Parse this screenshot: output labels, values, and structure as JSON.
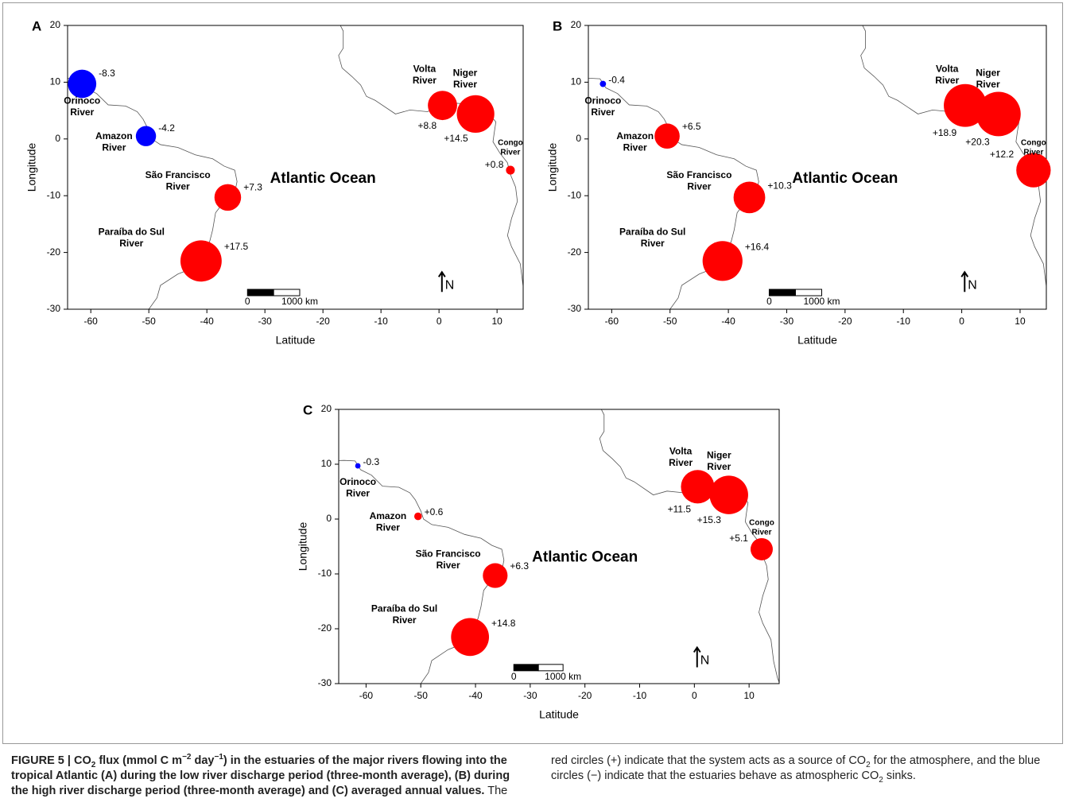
{
  "chart_data": [
    {
      "type": "bubble-map",
      "label": "A",
      "x_label": "Latitude",
      "y_label": "Longitude",
      "xlim": [
        -64,
        14.5
      ],
      "ylim": [
        -30,
        20
      ],
      "xticks": [
        -60,
        -50,
        -40,
        -30,
        -20,
        -10,
        0,
        10
      ],
      "yticks": [
        -30,
        -20,
        -10,
        0,
        10,
        20
      ],
      "annotation": "Atlantic Ocean",
      "scale_bar": [
        "0",
        "1000 km"
      ],
      "north": "N",
      "points": [
        {
          "name": "Orinoco River",
          "x": -61.5,
          "y": 9.7,
          "value": -8.3,
          "value_label": "-8.3",
          "color": "#0000ff"
        },
        {
          "name": "Amazon River",
          "x": -50.5,
          "y": 0.5,
          "value": -4.2,
          "value_label": "-4.2",
          "color": "#0000ff"
        },
        {
          "name": "São Francisco River",
          "x": -36.4,
          "y": -10.3,
          "value": 7.3,
          "value_label": "+7.3",
          "color": "#ff0000"
        },
        {
          "name": "Paraíba do Sul River",
          "x": -41,
          "y": -21.5,
          "value": 17.5,
          "value_label": "+17.5",
          "color": "#ff0000"
        },
        {
          "name": "Volta River",
          "x": 0.6,
          "y": 5.9,
          "value": 8.8,
          "value_label": "+8.8",
          "color": "#ff0000"
        },
        {
          "name": "Niger River",
          "x": 6.3,
          "y": 4.4,
          "value": 14.5,
          "value_label": "+14.5",
          "color": "#ff0000"
        },
        {
          "name": "Congo River",
          "x": 12.3,
          "y": -5.5,
          "value": 0.8,
          "value_label": "+0.8",
          "color": "#ff0000"
        }
      ]
    },
    {
      "type": "bubble-map",
      "label": "B",
      "x_label": "Latitude",
      "y_label": "Longitude",
      "xlim": [
        -64,
        14.5
      ],
      "ylim": [
        -30,
        20
      ],
      "xticks": [
        -60,
        -50,
        -40,
        -30,
        -20,
        -10,
        0,
        10
      ],
      "yticks": [
        -30,
        -20,
        -10,
        0,
        10,
        20
      ],
      "annotation": "Atlantic Ocean",
      "scale_bar": [
        "0",
        "1000 km"
      ],
      "north": "N",
      "points": [
        {
          "name": "Orinoco River",
          "x": -61.5,
          "y": 9.7,
          "value": -0.4,
          "value_label": "-0.4",
          "color": "#0000ff"
        },
        {
          "name": "Amazon River",
          "x": -50.5,
          "y": 0.5,
          "value": 6.5,
          "value_label": "+6.5",
          "color": "#ff0000"
        },
        {
          "name": "São Francisco River",
          "x": -36.4,
          "y": -10.3,
          "value": 10.3,
          "value_label": "+10.3",
          "color": "#ff0000"
        },
        {
          "name": "Paraíba do Sul River",
          "x": -41,
          "y": -21.5,
          "value": 16.4,
          "value_label": "+16.4",
          "color": "#ff0000"
        },
        {
          "name": "Volta River",
          "x": 0.6,
          "y": 5.9,
          "value": 18.9,
          "value_label": "+18.9",
          "color": "#ff0000"
        },
        {
          "name": "Niger River",
          "x": 6.3,
          "y": 4.4,
          "value": 20.3,
          "value_label": "+20.3",
          "color": "#ff0000"
        },
        {
          "name": "Congo River",
          "x": 12.3,
          "y": -5.5,
          "value": 12.2,
          "value_label": "+12.2",
          "color": "#ff0000"
        }
      ]
    },
    {
      "type": "bubble-map",
      "label": "C",
      "x_label": "Latitude",
      "y_label": "Longitude",
      "xlim": [
        -65,
        15.5
      ],
      "ylim": [
        -30,
        20
      ],
      "xticks": [
        -60,
        -50,
        -40,
        -30,
        -20,
        -10,
        0,
        10
      ],
      "yticks": [
        -30,
        -20,
        -10,
        0,
        10,
        20
      ],
      "annotation": "Atlantic Ocean",
      "scale_bar": [
        "0",
        "1000 km"
      ],
      "north": "N",
      "points": [
        {
          "name": "Orinoco River",
          "x": -61.5,
          "y": 9.7,
          "value": -0.3,
          "value_label": "-0.3",
          "color": "#0000ff"
        },
        {
          "name": "Amazon River",
          "x": -50.5,
          "y": 0.5,
          "value": 0.6,
          "value_label": "+0.6",
          "color": "#ff0000"
        },
        {
          "name": "São Francisco River",
          "x": -36.4,
          "y": -10.3,
          "value": 6.3,
          "value_label": "+6.3",
          "color": "#ff0000"
        },
        {
          "name": "Paraíba do Sul River",
          "x": -41,
          "y": -21.5,
          "value": 14.8,
          "value_label": "+14.8",
          "color": "#ff0000"
        },
        {
          "name": "Volta River",
          "x": 0.6,
          "y": 5.9,
          "value": 11.5,
          "value_label": "+11.5",
          "color": "#ff0000"
        },
        {
          "name": "Niger River",
          "x": 6.3,
          "y": 4.4,
          "value": 15.3,
          "value_label": "+15.3",
          "color": "#ff0000"
        },
        {
          "name": "Congo River",
          "x": 12.3,
          "y": -5.5,
          "value": 5.1,
          "value_label": "+5.1",
          "color": "#ff0000"
        }
      ]
    }
  ],
  "caption": {
    "parts": [
      "FIGURE 5 | CO",
      "2",
      " flux (mmol C m",
      "−2",
      " day",
      "−1",
      ") in the estuaries of the major rivers flowing into the tropical Atlantic (A) during the low river discharge period (three-month average), (B) during the high river discharge period (three-month average) and (C) averaged annual values.",
      " The red circles (+) indicate that the system acts as a source of CO",
      "2",
      " for the atmosphere, and the blue circles (−) indicate that the estuaries behave as atmospheric CO",
      "2",
      " sinks."
    ]
  }
}
